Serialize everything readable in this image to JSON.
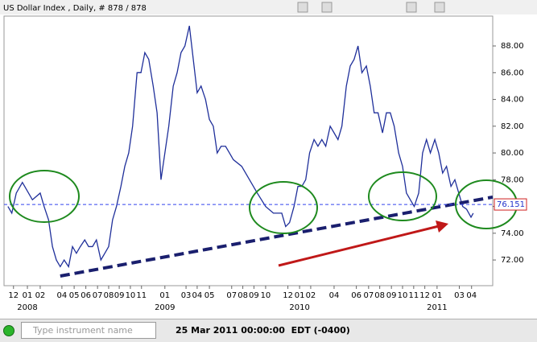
{
  "chart_data": {
    "type": "line",
    "title": "US Dollar Index , Daily, # 878 / 878",
    "color": "#1f2f9a",
    "x": [
      7,
      14,
      22,
      33,
      51,
      65,
      72,
      80,
      87,
      94,
      101,
      108,
      116,
      123,
      130,
      137,
      145,
      152,
      159,
      166,
      174,
      181,
      188,
      195,
      202,
      210,
      217,
      224,
      231,
      239,
      246,
      253,
      260,
      268,
      275,
      282,
      289,
      296,
      304,
      311,
      318,
      325,
      333,
      340,
      347,
      354,
      362,
      369,
      376,
      383,
      390,
      398,
      405,
      412,
      427,
      441,
      455,
      470,
      484,
      499,
      506,
      513,
      521,
      528,
      535,
      542,
      549,
      557,
      564,
      571,
      578,
      586,
      593,
      600,
      607,
      615,
      622,
      629,
      636,
      643,
      651,
      658,
      665,
      672,
      680,
      687,
      694,
      701,
      709,
      716,
      723,
      730,
      737,
      745,
      752,
      759,
      766,
      774,
      781,
      788,
      795,
      803,
      810,
      817,
      824,
      831,
      839,
      843
    ],
    "values": [
      76,
      75.5,
      77,
      77.8,
      76.5,
      77,
      76,
      75,
      73,
      72,
      71.5,
      72,
      71.5,
      73,
      72.5,
      73,
      73.5,
      73,
      73,
      73.5,
      72,
      72.5,
      73,
      75,
      76,
      77.5,
      79,
      80,
      82,
      86,
      86,
      87.5,
      87,
      85,
      83,
      78,
      80,
      82,
      85,
      86,
      87.5,
      88,
      89.5,
      87,
      84.5,
      85,
      84,
      82.5,
      82,
      80,
      80.5,
      80.5,
      80,
      79.5,
      79,
      78,
      77,
      76,
      75.5,
      75.5,
      74.5,
      74.8,
      76,
      77.5,
      77.5,
      78,
      80,
      81,
      80.5,
      81,
      80.5,
      82,
      81.5,
      81,
      82,
      85,
      86.5,
      87,
      88,
      86,
      86.5,
      85,
      83,
      83,
      81.5,
      83,
      83,
      82,
      80,
      79,
      77,
      76.5,
      76,
      77,
      80,
      81,
      80,
      81,
      80,
      78.5,
      79,
      77.5,
      78,
      77,
      76,
      75.8,
      75.2,
      75.5
    ],
    "xlim": [
      0,
      878
    ],
    "ylim": [
      70.08,
      90.23
    ],
    "yticks": [
      {
        "value": 72,
        "label": "72.00"
      },
      {
        "value": 74,
        "label": "74.00"
      },
      {
        "value": 76,
        "label": "76.00"
      },
      {
        "value": 78,
        "label": "78.00"
      },
      {
        "value": 80,
        "label": "80.00"
      },
      {
        "value": 82,
        "label": "82.00"
      },
      {
        "value": 84,
        "label": "84.00"
      },
      {
        "value": 86,
        "label": "86.00"
      },
      {
        "value": 88,
        "label": "88.00"
      }
    ],
    "xticks": [
      {
        "value": 17,
        "label": "12"
      },
      {
        "value": 42,
        "label": "01"
      },
      {
        "value": 65,
        "label": "02"
      },
      {
        "value": 104,
        "label": "04"
      },
      {
        "value": 126,
        "label": "05"
      },
      {
        "value": 147,
        "label": "06"
      },
      {
        "value": 168,
        "label": "07"
      },
      {
        "value": 188,
        "label": "08"
      },
      {
        "value": 207,
        "label": "09"
      },
      {
        "value": 227,
        "label": "10"
      },
      {
        "value": 247,
        "label": "11"
      },
      {
        "value": 289,
        "label": "01"
      },
      {
        "value": 327,
        "label": "03"
      },
      {
        "value": 347,
        "label": "04"
      },
      {
        "value": 369,
        "label": "05"
      },
      {
        "value": 409,
        "label": "07"
      },
      {
        "value": 429,
        "label": "08"
      },
      {
        "value": 449,
        "label": "09"
      },
      {
        "value": 470,
        "label": "10"
      },
      {
        "value": 510,
        "label": "12"
      },
      {
        "value": 531,
        "label": "01"
      },
      {
        "value": 551,
        "label": "02"
      },
      {
        "value": 593,
        "label": "04"
      },
      {
        "value": 633,
        "label": "06"
      },
      {
        "value": 655,
        "label": "07"
      },
      {
        "value": 675,
        "label": "08"
      },
      {
        "value": 696,
        "label": "09"
      },
      {
        "value": 716,
        "label": "10"
      },
      {
        "value": 736,
        "label": "11"
      },
      {
        "value": 756,
        "label": "12"
      },
      {
        "value": 778,
        "label": "01"
      },
      {
        "value": 818,
        "label": "03"
      },
      {
        "value": 840,
        "label": "04"
      }
    ],
    "year_ticks": [
      {
        "value": 42,
        "label": "2008"
      },
      {
        "value": 289,
        "label": "2009"
      },
      {
        "value": 531,
        "label": "2010"
      },
      {
        "value": 778,
        "label": "2011"
      }
    ],
    "last_price": 76.151,
    "trendline": {
      "x": [
        101,
        878
      ],
      "values": [
        70.8,
        76.7
      ],
      "color": "#1a1f6e"
    },
    "grid": false
  },
  "status": {
    "search_placeholder": "Type instrument name",
    "datetime": "25 Mar 2011 00:00:00  EDT (-0400)"
  }
}
